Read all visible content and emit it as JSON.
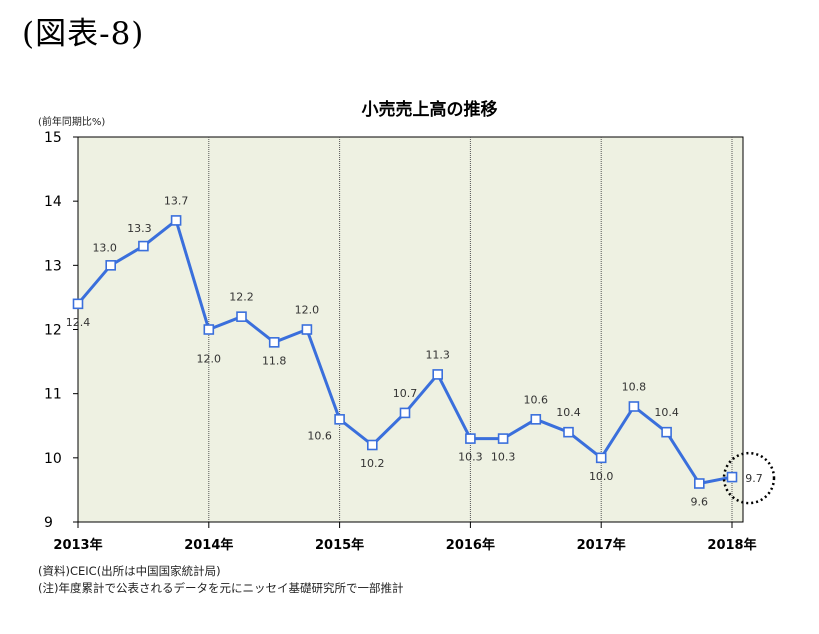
{
  "figure_label": "(図表-8)",
  "chart_data": {
    "type": "line",
    "title": "小売売上高の推移",
    "ylabel": "(前年同期比%)",
    "xlabel": "",
    "ylim": [
      9,
      15
    ],
    "yticks": [
      "9",
      "10",
      "11",
      "12",
      "13",
      "14",
      "15"
    ],
    "grid": "vertical-year-lines",
    "x_labels": [
      "2013年",
      "2014年",
      "2015年",
      "2016年",
      "2017年",
      "2018年"
    ],
    "series": [
      {
        "name": "",
        "color": "#3a6fdc",
        "marker": "open-square",
        "values": [
          12.4,
          13.0,
          13.3,
          13.7,
          12.0,
          12.2,
          11.8,
          12.0,
          10.6,
          10.2,
          10.7,
          11.3,
          10.3,
          10.3,
          10.6,
          10.4,
          10.0,
          10.8,
          10.4,
          9.6,
          9.7
        ],
        "labels": [
          "12.4",
          "13.0",
          "13.3",
          "13.7",
          "12.0",
          "12.2",
          "11.8",
          "12.0",
          "10.6",
          "10.2",
          "10.7",
          "11.3",
          "10.3",
          "10.3",
          "10.6",
          "10.4",
          "10.0",
          "10.8",
          "10.4",
          "9.6",
          "9.7"
        ]
      }
    ],
    "highlight": "last-point-dotted-circle"
  },
  "notes": [
    "(資料)CEIC(出所は中国国家統計局)",
    "(注)年度累計で公表されるデータを元にニッセイ基礎研究所で一部推計"
  ]
}
